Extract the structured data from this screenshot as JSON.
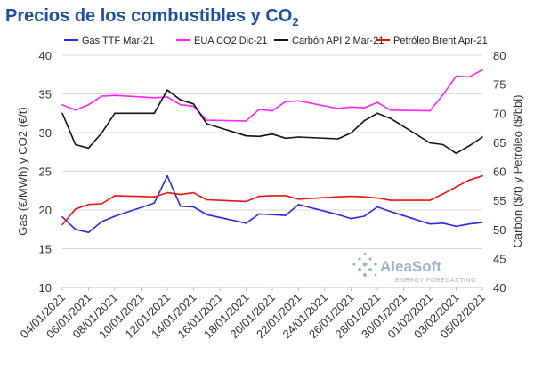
{
  "title": {
    "main": "Precios de los combustibles y CO",
    "subscript": "2"
  },
  "watermark": {
    "brand": "AleaSoft",
    "tagline": "ENERGY FORECASTING",
    "color": "#9fb3c8"
  },
  "chart_data": {
    "type": "line",
    "grid": true,
    "legend_position": "top",
    "x": [
      "04/01/2021",
      "05/01/2021",
      "06/01/2021",
      "07/01/2021",
      "08/01/2021",
      "11/01/2021",
      "12/01/2021",
      "13/01/2021",
      "14/01/2021",
      "15/01/2021",
      "18/01/2021",
      "19/01/2021",
      "20/01/2021",
      "21/01/2021",
      "22/01/2021",
      "25/01/2021",
      "26/01/2021",
      "27/01/2021",
      "28/01/2021",
      "29/01/2021",
      "01/02/2021",
      "02/02/2021",
      "03/02/2021",
      "04/02/2021",
      "05/02/2021"
    ],
    "x_tick_labels": [
      "04/01/2021",
      "06/01/2021",
      "08/01/2021",
      "10/01/2021",
      "12/01/2021",
      "14/01/2021",
      "16/01/2021",
      "18/01/2021",
      "20/01/2021",
      "22/01/2021",
      "24/01/2021",
      "26/01/2021",
      "28/01/2021",
      "30/01/2021",
      "01/02/2021",
      "03/02/2021",
      "05/02/2021"
    ],
    "x_range": [
      "04/01/2021",
      "05/02/2021"
    ],
    "y_left": {
      "label": "Gas (€/MWh) y CO2 (€/t)",
      "range": [
        10,
        40
      ],
      "ticks": [
        10,
        15,
        20,
        25,
        30,
        35,
        40
      ]
    },
    "y_right": {
      "label": "Carbón ($/t) y Petróleo ($/bbl)",
      "range": [
        40,
        80
      ],
      "ticks": [
        40,
        45,
        50,
        55,
        60,
        65,
        70,
        75,
        80
      ]
    },
    "series": [
      {
        "name": "Gas TTF Mar-21",
        "color": "#2a2ae0",
        "axis": "left",
        "values": [
          19.1,
          17.5,
          17.1,
          18.5,
          19.2,
          20.9,
          24.4,
          20.5,
          20.4,
          19.4,
          18.3,
          19.5,
          19.4,
          19.3,
          20.7,
          19.4,
          18.9,
          19.2,
          20.4,
          19.8,
          18.2,
          18.3,
          17.9,
          18.2,
          18.4
        ]
      },
      {
        "name": "EUA CO2 Dic-21",
        "color": "#ff22ff",
        "axis": "left",
        "values": [
          33.6,
          32.9,
          33.6,
          34.7,
          34.8,
          34.5,
          34.6,
          33.6,
          33.4,
          31.6,
          31.5,
          33.0,
          32.8,
          34.0,
          34.1,
          33.1,
          33.3,
          33.2,
          33.9,
          32.9,
          32.8,
          34.9,
          37.3,
          37.2,
          38.1
        ]
      },
      {
        "name": "Carbón API 2 Mar-21",
        "color": "#111111",
        "axis": "right",
        "values": [
          70.0,
          64.6,
          64.0,
          66.6,
          70.0,
          70.0,
          74.0,
          72.3,
          71.6,
          68.2,
          66.1,
          66.0,
          66.4,
          65.7,
          65.9,
          65.6,
          66.6,
          68.7,
          70.0,
          69.1,
          64.9,
          64.6,
          63.1,
          64.4,
          65.9
        ]
      },
      {
        "name": "Petróleo Brent Apr-21",
        "color": "#ee1111",
        "axis": "right",
        "values": [
          50.8,
          53.5,
          54.3,
          54.4,
          55.8,
          55.6,
          56.3,
          56.0,
          56.3,
          55.1,
          54.8,
          55.7,
          55.8,
          55.8,
          55.2,
          55.6,
          55.7,
          55.6,
          55.4,
          55.0,
          55.0,
          56.1,
          57.3,
          58.5,
          59.2
        ]
      }
    ]
  }
}
